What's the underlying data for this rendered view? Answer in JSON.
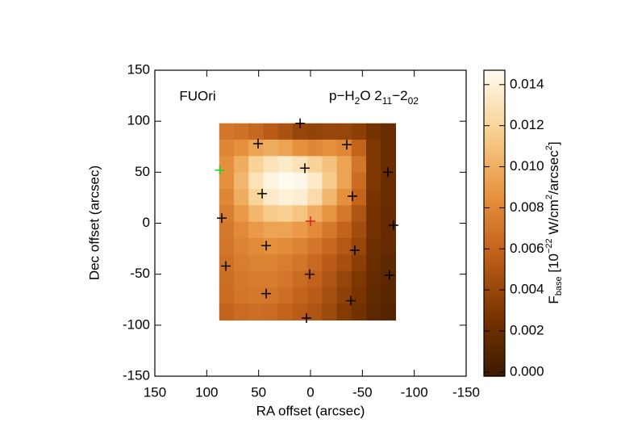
{
  "chart_data": {
    "type": "heatmap",
    "annotation_left": "FUOri",
    "annotation_right": {
      "p1": "p−H",
      "s1": "2",
      "p2": "O 2",
      "s2": "11",
      "p3": "−2",
      "s3": "02"
    },
    "xlabel": "RA offset (arcsec)",
    "ylabel": "Dec offset (arcsec)",
    "colorbar_label": {
      "p1": "F",
      "s1": "base",
      "p2": " [10",
      "e1": "−22",
      "p3": " W/cm",
      "e2": "2",
      "p4": "/arcsec",
      "e3": "2",
      "p5": "]"
    },
    "xlim": [
      150,
      -150
    ],
    "xticks": [
      150,
      100,
      50,
      0,
      -50,
      -100,
      -150
    ],
    "ylim": [
      -150,
      150
    ],
    "yticks": [
      -150,
      -100,
      -50,
      0,
      50,
      100,
      150
    ],
    "map_xlim": [
      88,
      -82
    ],
    "map_ylim": [
      98,
      -95
    ],
    "clim": [
      -0.0002,
      0.0147
    ],
    "cticks": [
      {
        "value": 0,
        "label": "0.000"
      },
      {
        "value": 0.002,
        "label": "0.002"
      },
      {
        "value": 0.004,
        "label": "0.004"
      },
      {
        "value": 0.006,
        "label": "0.006"
      },
      {
        "value": 0.008,
        "label": "0.008"
      },
      {
        "value": 0.01,
        "label": "0.010"
      },
      {
        "value": 0.012,
        "label": "0.012"
      },
      {
        "value": 0.014,
        "label": "0.014"
      }
    ],
    "colormap": [
      "#3c1a00",
      "#7a3400",
      "#c0601a",
      "#e89440",
      "#f8d090",
      "#fffbf0"
    ],
    "z": [
      [
        0.007,
        0.0068,
        0.0062,
        0.0055,
        0.0048,
        0.004,
        0.0038,
        0.004,
        0.004,
        0.0035,
        0.0025,
        0.002
      ],
      [
        0.008,
        0.0085,
        0.0095,
        0.01,
        0.0095,
        0.0085,
        0.008,
        0.0085,
        0.008,
        0.006,
        0.003,
        0.002
      ],
      [
        0.0085,
        0.01,
        0.012,
        0.013,
        0.0135,
        0.013,
        0.012,
        0.011,
        0.0095,
        0.007,
        0.003,
        0.002
      ],
      [
        0.0085,
        0.0105,
        0.013,
        0.0142,
        0.0147,
        0.0145,
        0.0135,
        0.0115,
        0.0095,
        0.0065,
        0.003,
        0.002
      ],
      [
        0.008,
        0.01,
        0.012,
        0.0135,
        0.014,
        0.0138,
        0.0125,
        0.0105,
        0.0085,
        0.006,
        0.0028,
        0.002
      ],
      [
        0.0075,
        0.009,
        0.0105,
        0.0115,
        0.0118,
        0.0112,
        0.01,
        0.0088,
        0.0072,
        0.005,
        0.0025,
        0.0018
      ],
      [
        0.0072,
        0.0082,
        0.009,
        0.0095,
        0.0095,
        0.009,
        0.0082,
        0.0072,
        0.006,
        0.0045,
        0.0025,
        0.0018
      ],
      [
        0.007,
        0.0078,
        0.0082,
        0.0085,
        0.0083,
        0.0078,
        0.007,
        0.0062,
        0.0052,
        0.004,
        0.0022,
        0.0018
      ],
      [
        0.0068,
        0.0075,
        0.0078,
        0.0078,
        0.0075,
        0.007,
        0.0063,
        0.0055,
        0.0046,
        0.0035,
        0.002,
        0.0015
      ],
      [
        0.0066,
        0.0072,
        0.0074,
        0.0074,
        0.007,
        0.0064,
        0.0058,
        0.005,
        0.004,
        0.003,
        0.0018,
        0.0014
      ],
      [
        0.0065,
        0.007,
        0.0072,
        0.007,
        0.0066,
        0.006,
        0.0054,
        0.0046,
        0.0036,
        0.0028,
        0.0016,
        0.0012
      ],
      [
        0.006,
        0.0064,
        0.0066,
        0.0064,
        0.006,
        0.0055,
        0.005,
        0.0042,
        0.0032,
        0.0024,
        0.0014,
        0.001
      ]
    ],
    "markers": [
      {
        "color": "#000000",
        "x": [
          10,
          50.5,
          -35,
          5.4,
          -74.6,
          46.6,
          -40.4,
          85.5,
          -80,
          42.7,
          -42.7,
          81.6,
          0.8,
          -76,
          42.7,
          -38.9,
          3.9
        ],
        "y": [
          98,
          78,
          77,
          54,
          50,
          29,
          26.5,
          5,
          -2,
          -22,
          -26.5,
          -42,
          -50,
          -51,
          -69,
          -76,
          -93
        ]
      },
      {
        "color": "#e02020",
        "x": [
          0
        ],
        "y": [
          2
        ]
      },
      {
        "color": "#20d020",
        "x": [
          87.4
        ],
        "y": [
          52
        ]
      }
    ]
  }
}
